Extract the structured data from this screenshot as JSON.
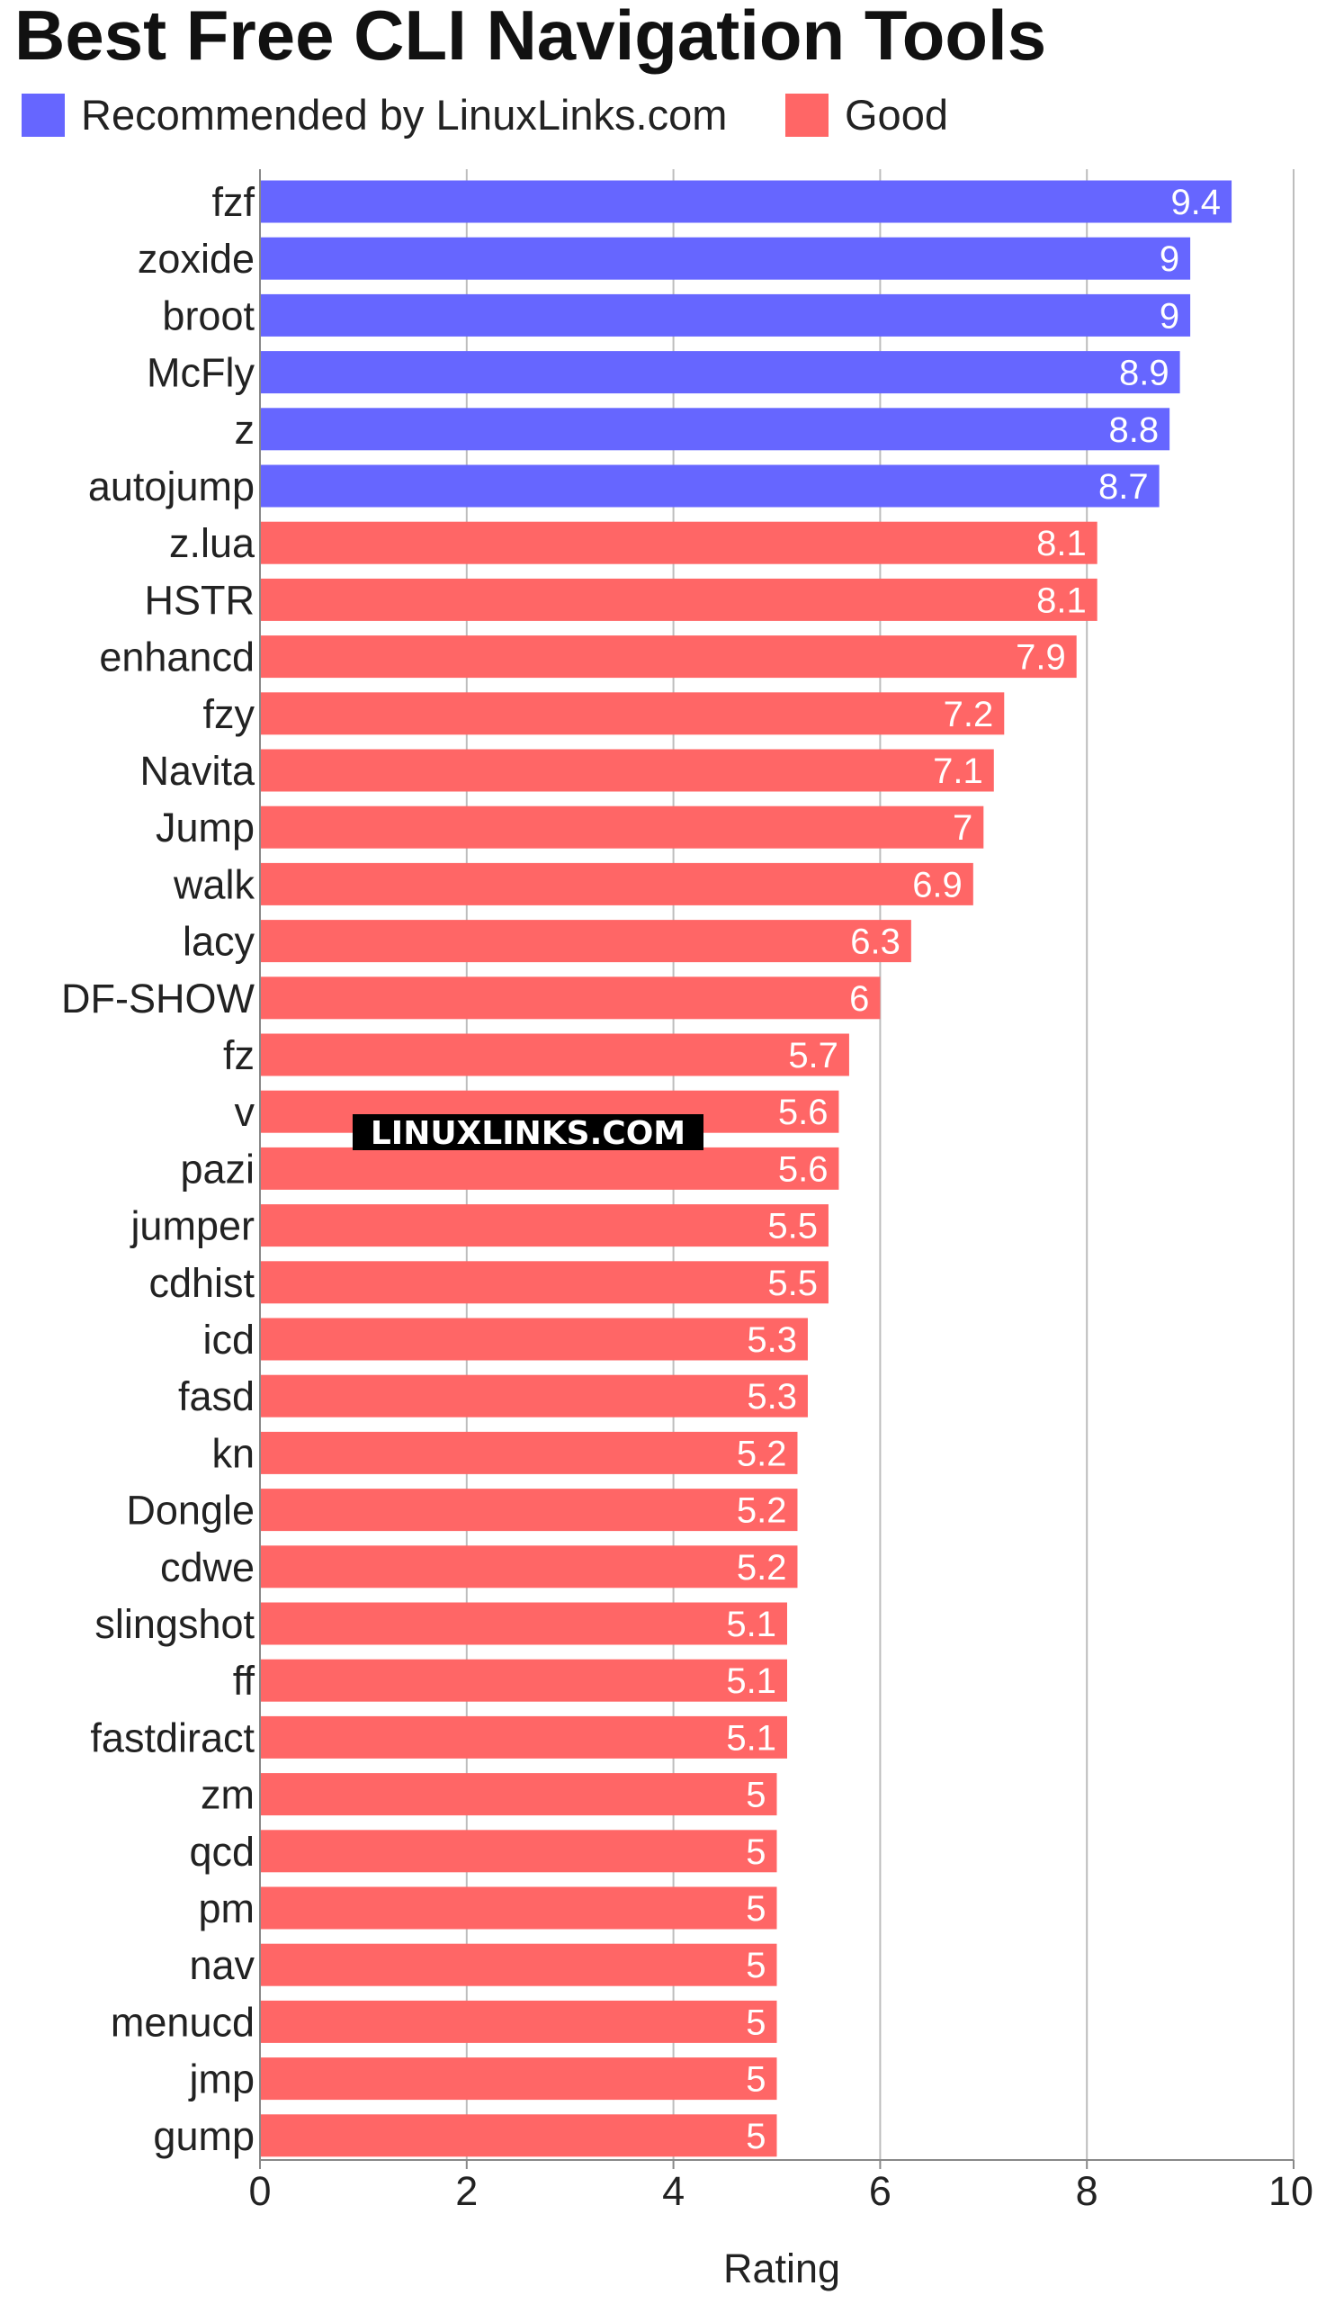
{
  "chart_data": {
    "type": "bar",
    "orientation": "horizontal",
    "title": "Best Free CLI Navigation Tools",
    "xlabel": "Rating",
    "ylabel": "",
    "xlim": [
      0,
      10
    ],
    "xticks": [
      0,
      2,
      4,
      6,
      8,
      10
    ],
    "grid": true,
    "legend_position": "top-left",
    "series": [
      {
        "name": "Recommended by LinuxLinks.com",
        "color": "#6666ff"
      },
      {
        "name": "Good",
        "color": "#ff6666"
      }
    ],
    "categories": [
      "fzf",
      "zoxide",
      "broot",
      "McFly",
      "z",
      "autojump",
      "z.lua",
      "HSTR",
      "enhancd",
      "fzy",
      "Navita",
      "Jump",
      "walk",
      "lacy",
      "DF-SHOW",
      "fz",
      "v",
      "pazi",
      "jumper",
      "cdhist",
      "icd",
      "fasd",
      "kn",
      "Dongle",
      "cdwe",
      "slingshot",
      "ff",
      "fastdiract",
      "zm",
      "qcd",
      "pm",
      "nav",
      "menucd",
      "jmp",
      "gump"
    ],
    "values": [
      9.4,
      9,
      9,
      8.9,
      8.8,
      8.7,
      8.1,
      8.1,
      7.9,
      7.2,
      7.1,
      7,
      6.9,
      6.3,
      6,
      5.7,
      5.6,
      5.6,
      5.5,
      5.5,
      5.3,
      5.3,
      5.2,
      5.2,
      5.2,
      5.1,
      5.1,
      5.1,
      5,
      5,
      5,
      5,
      5,
      5,
      5
    ],
    "value_labels": [
      "9.4",
      "9",
      "9",
      "8.9",
      "8.8",
      "8.7",
      "8.1",
      "8.1",
      "7.9",
      "7.2",
      "7.1",
      "7",
      "6.9",
      "6.3",
      "6",
      "5.7",
      "5.6",
      "5.6",
      "5.5",
      "5.5",
      "5.3",
      "5.3",
      "5.2",
      "5.2",
      "5.2",
      "5.1",
      "5.1",
      "5.1",
      "5",
      "5",
      "5",
      "5",
      "5",
      "5",
      "5"
    ],
    "series_index": [
      0,
      0,
      0,
      0,
      0,
      0,
      1,
      1,
      1,
      1,
      1,
      1,
      1,
      1,
      1,
      1,
      1,
      1,
      1,
      1,
      1,
      1,
      1,
      1,
      1,
      1,
      1,
      1,
      1,
      1,
      1,
      1,
      1,
      1,
      1
    ]
  },
  "watermark": "LINUXLINKS.COM"
}
